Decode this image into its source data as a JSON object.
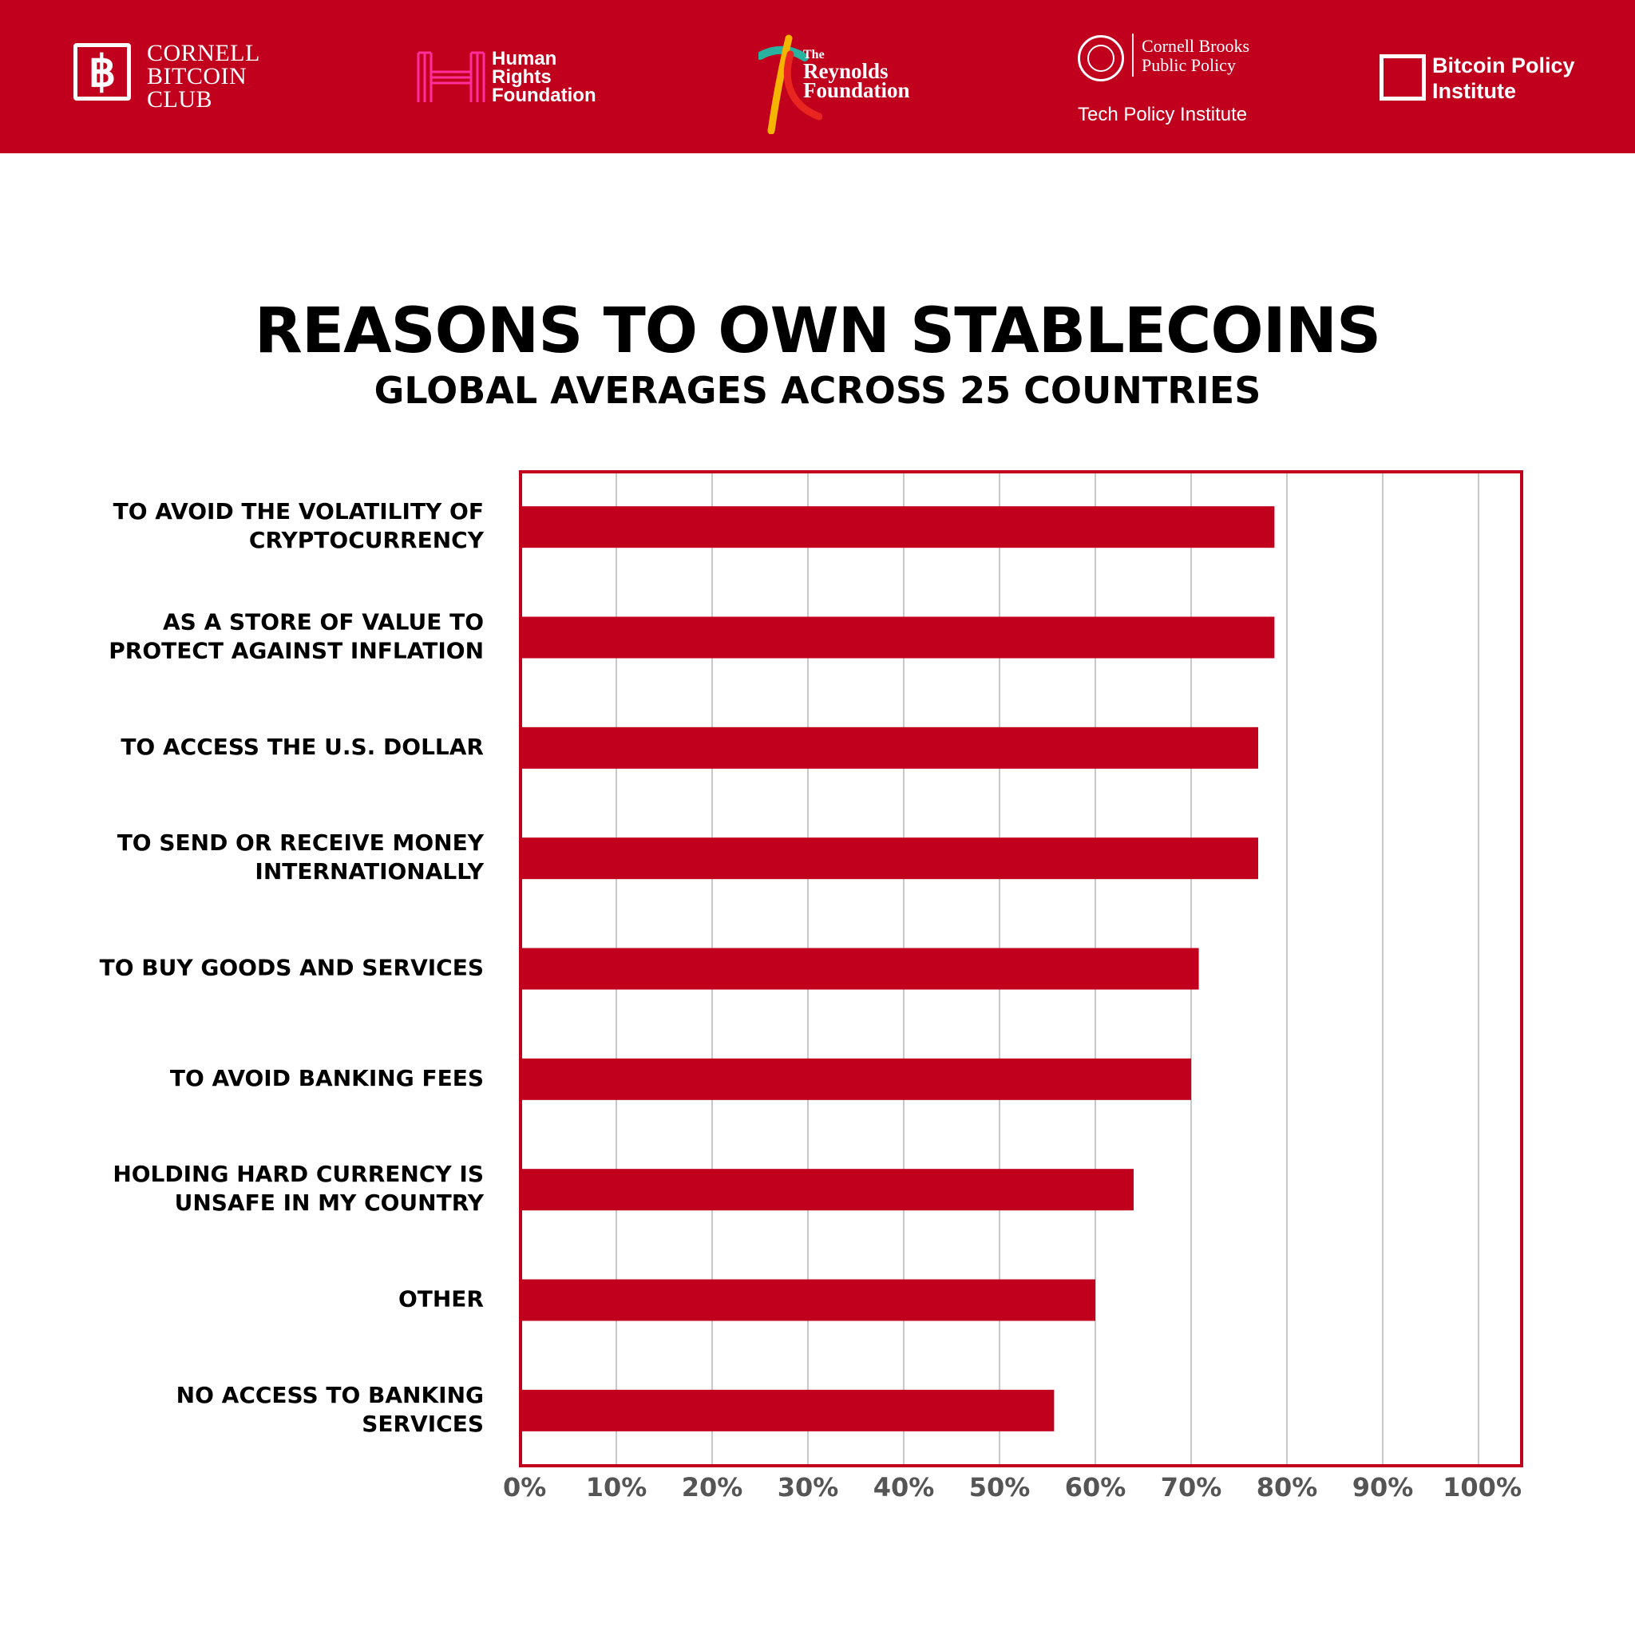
{
  "colors": {
    "brand_red": "#c0001d",
    "text": "#000000",
    "tick_text": "#555555",
    "grid": "#c8c8c8"
  },
  "header": {
    "logos": {
      "cornell_bitcoin_club": {
        "badge_icon": "bitcoin-icon",
        "lines": [
          "CORNELL",
          "BITCOIN",
          "CLUB"
        ]
      },
      "human_rights_foundation": {
        "lines": [
          "Human",
          "Rights",
          "Foundation"
        ]
      },
      "reynolds_foundation": {
        "the": "The",
        "lines": [
          "Reynolds",
          "Foundation"
        ]
      },
      "cornell_brooks": {
        "lines": [
          "Cornell Brooks",
          "Public Policy"
        ],
        "sub": "Tech Policy Institute"
      },
      "bitcoin_policy_institute": {
        "lines": [
          "Bitcoin Policy",
          "Institute"
        ]
      }
    }
  },
  "chart_data": {
    "type": "bar",
    "orientation": "horizontal",
    "title": "REASONS TO OWN STABLECOINS",
    "subtitle": "GLOBAL AVERAGES ACROSS 25 COUNTRIES",
    "categories": [
      [
        "TO AVOID THE VOLATILITY OF",
        "CRYPTOCURRENCY"
      ],
      [
        "AS A STORE OF VALUE TO",
        "PROTECT AGAINST INFLATION"
      ],
      [
        "TO ACCESS THE U.S. DOLLAR"
      ],
      [
        "TO SEND OR RECEIVE MONEY",
        "INTERNATIONALLY"
      ],
      [
        "TO BUY GOODS AND SERVICES"
      ],
      [
        "TO AVOID BANKING FEES"
      ],
      [
        "HOLDING HARD CURRENCY IS",
        "UNSAFE IN MY COUNTRY"
      ],
      [
        "OTHER"
      ],
      [
        "NO ACCESS TO BANKING",
        "SERVICES"
      ]
    ],
    "values": [
      78.7,
      78.7,
      77.0,
      77.0,
      70.8,
      70.0,
      64.0,
      60.0,
      55.7
    ],
    "xlim": [
      0,
      104.5
    ],
    "xticks": [
      0,
      10,
      20,
      30,
      40,
      50,
      60,
      70,
      80,
      90,
      100
    ],
    "xtick_labels": [
      "0%",
      "10%",
      "20%",
      "30%",
      "40%",
      "50%",
      "60%",
      "70%",
      "80%",
      "90%",
      "100%"
    ],
    "grid": true,
    "legend": "none"
  }
}
